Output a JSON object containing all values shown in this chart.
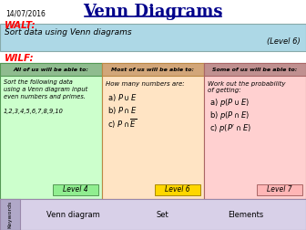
{
  "title": "Venn Diagrams",
  "date": "14/07/2016",
  "walt_label": "WALT:",
  "walt_text": "Sort data using Venn diagrams",
  "level_text": "(Level 6)",
  "wilf_label": "WILF:",
  "col1_header": "All of us will be able to:",
  "col1_body": "Sort the following data\nusing a Venn diagram input\neven numbers and primes.\n\n1,2,3,4,5,6,7,8,9,10",
  "col1_level": "Level 4",
  "col2_header": "Most of us will be able to:",
  "col2_body_intro": "How many numbers are:",
  "col2_items": [
    "a) $P\\cup E$",
    "b) $P\\cap E$",
    "c) $P\\cap\\overline{E}$"
  ],
  "col2_level": "Level 6",
  "col3_header": "Some of us will be able to:",
  "col3_body_intro": "Work out the probability\nof getting:",
  "col3_items": [
    "a) $p(P\\cup E)$",
    "b) $p(P\\cap E)$",
    "c) $p(P'\\cap E)$"
  ],
  "col3_level": "Level 7",
  "keywords_label": "Keywords",
  "keywords": [
    "Venn diagram",
    "Set",
    "Elements"
  ],
  "bg_color": "#ffffff",
  "title_color": "#00008B",
  "walt_color": "#FF0000",
  "wilf_color": "#FF0000",
  "walt_bg": "#ADD8E6",
  "col1_header_bg": "#8FBC8F",
  "col1_body_bg": "#CCFFCC",
  "col2_header_bg": "#D2A679",
  "col2_body_bg": "#FFE4C4",
  "col3_header_bg": "#C09090",
  "col3_body_bg": "#FFD0D0",
  "level_box_col1": "#90EE90",
  "level_box_col2": "#FFD700",
  "level_box_col3": "#FFB6B6",
  "keywords_bg": "#D8D0E8",
  "keywords_side_bg": "#B0A8C8"
}
